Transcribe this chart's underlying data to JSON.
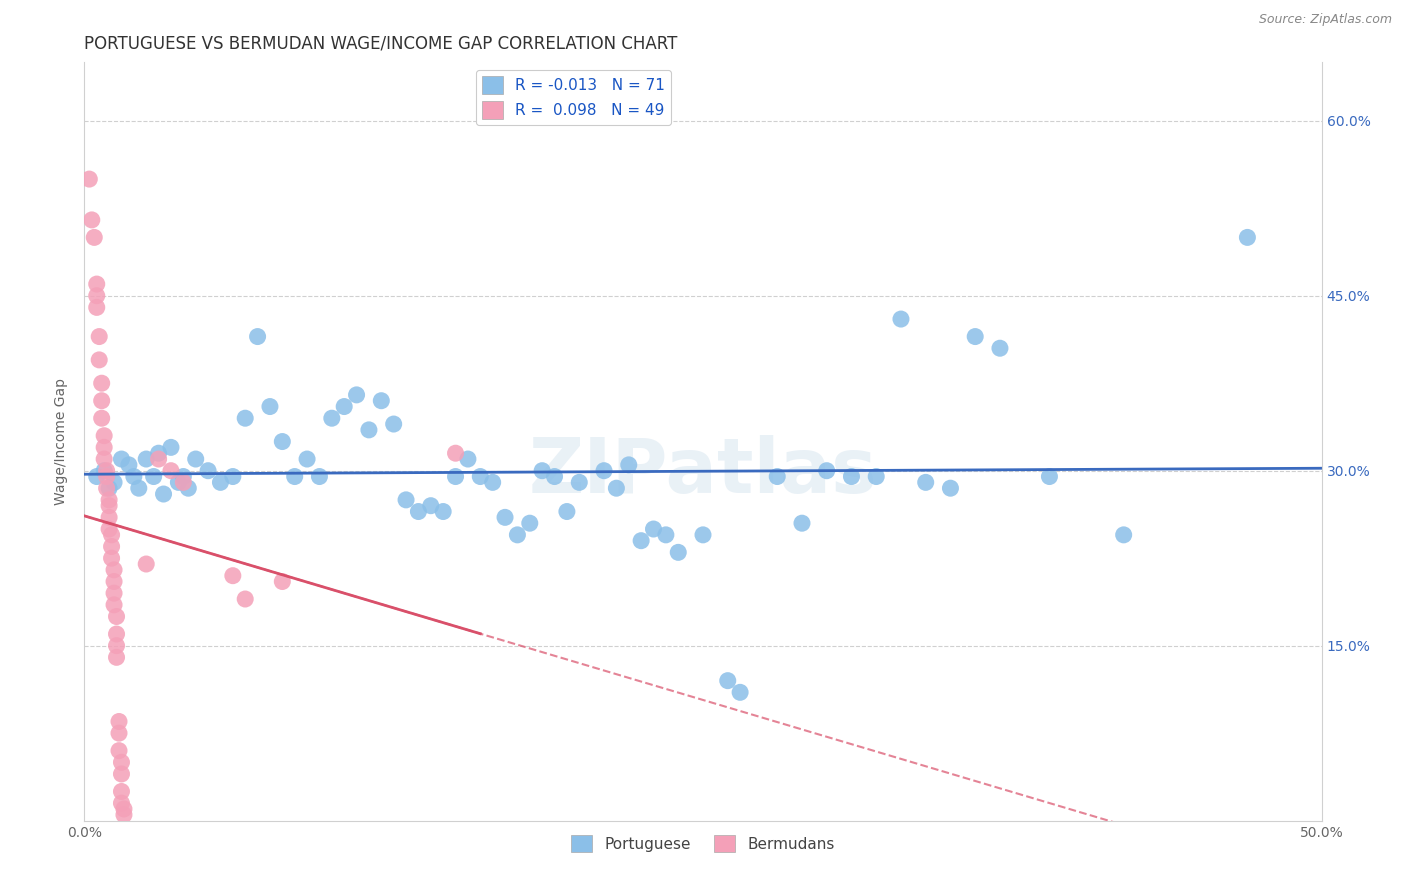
{
  "title": "PORTUGUESE VS BERMUDAN WAGE/INCOME GAP CORRELATION CHART",
  "source": "Source: ZipAtlas.com",
  "ylabel": "Wage/Income Gap",
  "xlim": [
    0.0,
    0.5
  ],
  "ylim": [
    0.0,
    0.65
  ],
  "ytick_vals": [
    0.15,
    0.3,
    0.45,
    0.6
  ],
  "ytick_labels": [
    "15.0%",
    "30.0%",
    "45.0%",
    "60.0%"
  ],
  "xtick_positions": [
    0.0,
    0.05,
    0.1,
    0.15,
    0.2,
    0.25,
    0.3,
    0.35,
    0.4,
    0.45,
    0.5
  ],
  "xtick_labels": [
    "0.0%",
    "",
    "",
    "",
    "",
    "",
    "",
    "",
    "",
    "",
    "50.0%"
  ],
  "r_portuguese": -0.013,
  "n_portuguese": 71,
  "r_bermudan": 0.098,
  "n_bermudan": 49,
  "portuguese_color": "#8bbfe8",
  "portuguese_line_color": "#3a6abf",
  "bermudan_color": "#f4a0b8",
  "bermudan_line_color": "#d9506a",
  "portuguese_scatter": [
    [
      0.005,
      0.295
    ],
    [
      0.008,
      0.3
    ],
    [
      0.01,
      0.285
    ],
    [
      0.012,
      0.29
    ],
    [
      0.015,
      0.31
    ],
    [
      0.018,
      0.305
    ],
    [
      0.02,
      0.295
    ],
    [
      0.022,
      0.285
    ],
    [
      0.025,
      0.31
    ],
    [
      0.028,
      0.295
    ],
    [
      0.03,
      0.315
    ],
    [
      0.032,
      0.28
    ],
    [
      0.035,
      0.32
    ],
    [
      0.038,
      0.29
    ],
    [
      0.04,
      0.295
    ],
    [
      0.042,
      0.285
    ],
    [
      0.045,
      0.31
    ],
    [
      0.05,
      0.3
    ],
    [
      0.055,
      0.29
    ],
    [
      0.06,
      0.295
    ],
    [
      0.065,
      0.345
    ],
    [
      0.07,
      0.415
    ],
    [
      0.075,
      0.355
    ],
    [
      0.08,
      0.325
    ],
    [
      0.085,
      0.295
    ],
    [
      0.09,
      0.31
    ],
    [
      0.095,
      0.295
    ],
    [
      0.1,
      0.345
    ],
    [
      0.105,
      0.355
    ],
    [
      0.11,
      0.365
    ],
    [
      0.115,
      0.335
    ],
    [
      0.12,
      0.36
    ],
    [
      0.125,
      0.34
    ],
    [
      0.13,
      0.275
    ],
    [
      0.135,
      0.265
    ],
    [
      0.14,
      0.27
    ],
    [
      0.145,
      0.265
    ],
    [
      0.15,
      0.295
    ],
    [
      0.155,
      0.31
    ],
    [
      0.16,
      0.295
    ],
    [
      0.165,
      0.29
    ],
    [
      0.17,
      0.26
    ],
    [
      0.175,
      0.245
    ],
    [
      0.18,
      0.255
    ],
    [
      0.185,
      0.3
    ],
    [
      0.19,
      0.295
    ],
    [
      0.195,
      0.265
    ],
    [
      0.2,
      0.29
    ],
    [
      0.21,
      0.3
    ],
    [
      0.215,
      0.285
    ],
    [
      0.22,
      0.305
    ],
    [
      0.225,
      0.24
    ],
    [
      0.23,
      0.25
    ],
    [
      0.235,
      0.245
    ],
    [
      0.24,
      0.23
    ],
    [
      0.25,
      0.245
    ],
    [
      0.26,
      0.12
    ],
    [
      0.265,
      0.11
    ],
    [
      0.28,
      0.295
    ],
    [
      0.29,
      0.255
    ],
    [
      0.3,
      0.3
    ],
    [
      0.31,
      0.295
    ],
    [
      0.32,
      0.295
    ],
    [
      0.33,
      0.43
    ],
    [
      0.34,
      0.29
    ],
    [
      0.35,
      0.285
    ],
    [
      0.36,
      0.415
    ],
    [
      0.37,
      0.405
    ],
    [
      0.39,
      0.295
    ],
    [
      0.42,
      0.245
    ],
    [
      0.47,
      0.5
    ]
  ],
  "bermudan_scatter": [
    [
      0.002,
      0.55
    ],
    [
      0.003,
      0.515
    ],
    [
      0.004,
      0.5
    ],
    [
      0.005,
      0.46
    ],
    [
      0.005,
      0.45
    ],
    [
      0.005,
      0.44
    ],
    [
      0.006,
      0.415
    ],
    [
      0.006,
      0.395
    ],
    [
      0.007,
      0.375
    ],
    [
      0.007,
      0.36
    ],
    [
      0.007,
      0.345
    ],
    [
      0.008,
      0.33
    ],
    [
      0.008,
      0.32
    ],
    [
      0.008,
      0.31
    ],
    [
      0.009,
      0.3
    ],
    [
      0.009,
      0.295
    ],
    [
      0.009,
      0.285
    ],
    [
      0.01,
      0.275
    ],
    [
      0.01,
      0.27
    ],
    [
      0.01,
      0.26
    ],
    [
      0.01,
      0.25
    ],
    [
      0.011,
      0.245
    ],
    [
      0.011,
      0.235
    ],
    [
      0.011,
      0.225
    ],
    [
      0.012,
      0.215
    ],
    [
      0.012,
      0.205
    ],
    [
      0.012,
      0.195
    ],
    [
      0.012,
      0.185
    ],
    [
      0.013,
      0.175
    ],
    [
      0.013,
      0.16
    ],
    [
      0.013,
      0.15
    ],
    [
      0.013,
      0.14
    ],
    [
      0.014,
      0.085
    ],
    [
      0.014,
      0.075
    ],
    [
      0.014,
      0.06
    ],
    [
      0.015,
      0.05
    ],
    [
      0.015,
      0.04
    ],
    [
      0.015,
      0.025
    ],
    [
      0.015,
      0.015
    ],
    [
      0.016,
      0.01
    ],
    [
      0.016,
      0.005
    ],
    [
      0.025,
      0.22
    ],
    [
      0.03,
      0.31
    ],
    [
      0.035,
      0.3
    ],
    [
      0.04,
      0.29
    ],
    [
      0.06,
      0.21
    ],
    [
      0.065,
      0.19
    ],
    [
      0.08,
      0.205
    ],
    [
      0.15,
      0.315
    ]
  ],
  "watermark": "ZIPatlas",
  "background_color": "#ffffff",
  "grid_color": "#d0d0d0",
  "title_fontsize": 12,
  "axis_label_fontsize": 10,
  "tick_fontsize": 10,
  "legend_fontsize": 11
}
